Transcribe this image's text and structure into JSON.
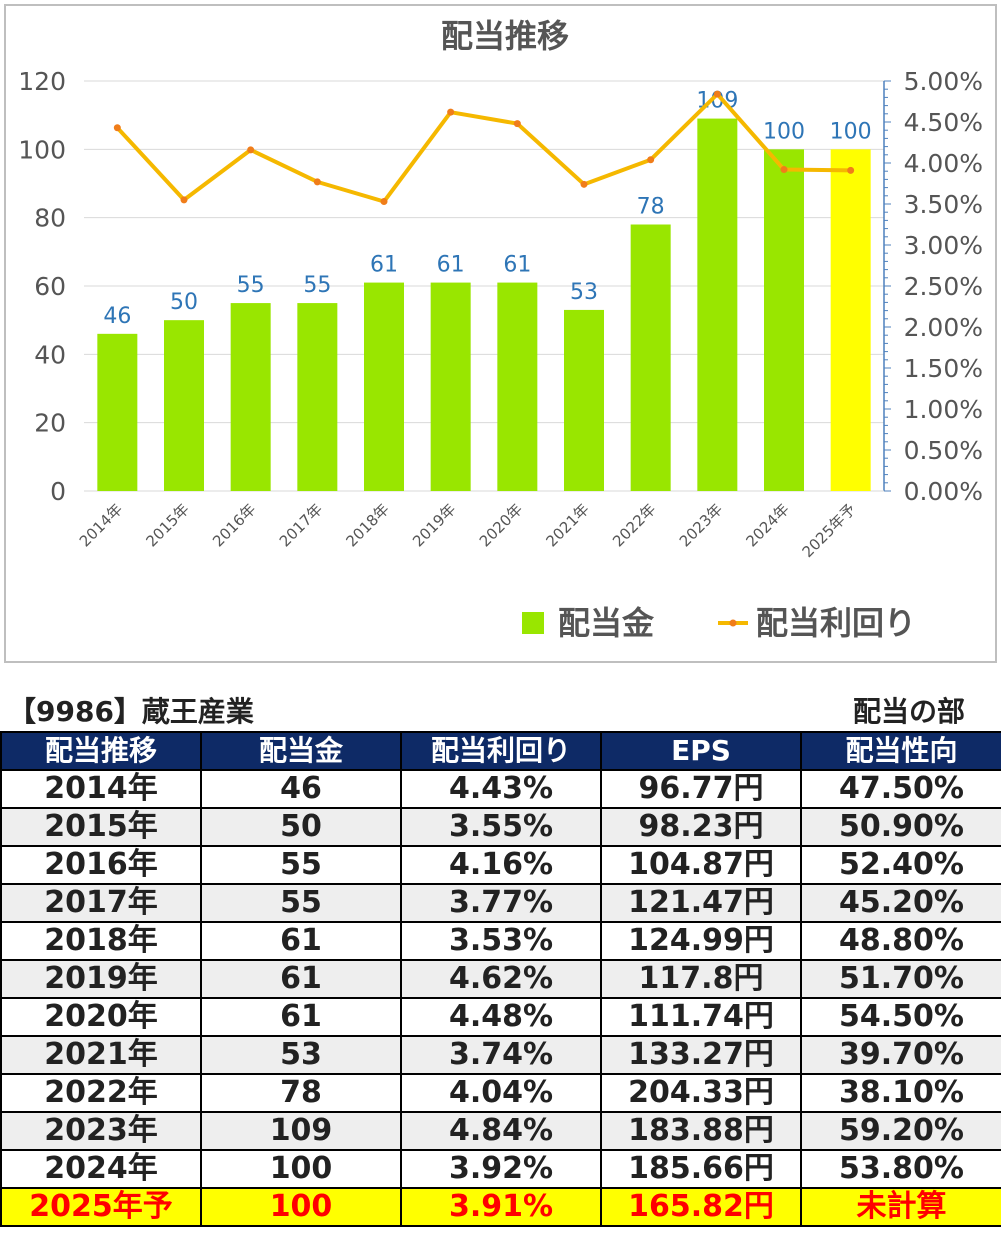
{
  "chart_data": {
    "type": "bar",
    "title": "配当推移",
    "categories": [
      "2014年",
      "2015年",
      "2016年",
      "2017年",
      "2018年",
      "2019年",
      "2020年",
      "2021年",
      "2022年",
      "2023年",
      "2024年",
      "2025年予"
    ],
    "series": [
      {
        "name": "配当金",
        "type": "bar",
        "values": [
          46,
          50,
          55,
          55,
          61,
          61,
          61,
          53,
          78,
          109,
          100,
          100
        ],
        "color": "#99e600",
        "highlight_last_color": "#ffff00"
      },
      {
        "name": "配当利回り",
        "type": "line",
        "axis": "right",
        "values": [
          4.43,
          3.55,
          4.16,
          3.77,
          3.53,
          4.62,
          4.48,
          3.74,
          4.04,
          4.84,
          3.92,
          3.91
        ],
        "color": "#f5b800",
        "marker_color": "#f07d1a"
      }
    ],
    "ylim": [
      0,
      120
    ],
    "yticks": [
      "0",
      "20",
      "40",
      "60",
      "80",
      "100",
      "120"
    ],
    "y2lim": [
      0,
      5
    ],
    "y2ticks": [
      "0.00%",
      "0.50%",
      "1.00%",
      "1.50%",
      "2.00%",
      "2.50%",
      "3.00%",
      "3.50%",
      "4.00%",
      "4.50%",
      "5.00%"
    ],
    "data_labels": [
      "46",
      "50",
      "55",
      "55",
      "61",
      "61",
      "61",
      "53",
      "78",
      "109",
      "100",
      "100"
    ],
    "grid": true,
    "legend_position": "bottom-right"
  },
  "page": {
    "company": "【9986】蔵王産業",
    "section": "配当の部"
  },
  "table": {
    "headers": [
      "配当推移",
      "配当金",
      "配当利回り",
      "EPS",
      "配当性向"
    ],
    "rows": [
      [
        "2014年",
        "46",
        "4.43%",
        "96.77円",
        "47.50%"
      ],
      [
        "2015年",
        "50",
        "3.55%",
        "98.23円",
        "50.90%"
      ],
      [
        "2016年",
        "55",
        "4.16%",
        "104.87円",
        "52.40%"
      ],
      [
        "2017年",
        "55",
        "3.77%",
        "121.47円",
        "45.20%"
      ],
      [
        "2018年",
        "61",
        "3.53%",
        "124.99円",
        "48.80%"
      ],
      [
        "2019年",
        "61",
        "4.62%",
        "117.8円",
        "51.70%"
      ],
      [
        "2020年",
        "61",
        "4.48%",
        "111.74円",
        "54.50%"
      ],
      [
        "2021年",
        "53",
        "3.74%",
        "133.27円",
        "39.70%"
      ],
      [
        "2022年",
        "78",
        "4.04%",
        "204.33円",
        "38.10%"
      ],
      [
        "2023年",
        "109",
        "4.84%",
        "183.88円",
        "59.20%"
      ],
      [
        "2024年",
        "100",
        "3.92%",
        "185.66円",
        "53.80%"
      ],
      [
        "2025年予",
        "100",
        "3.91%",
        "165.82円",
        "未計算"
      ]
    ]
  }
}
